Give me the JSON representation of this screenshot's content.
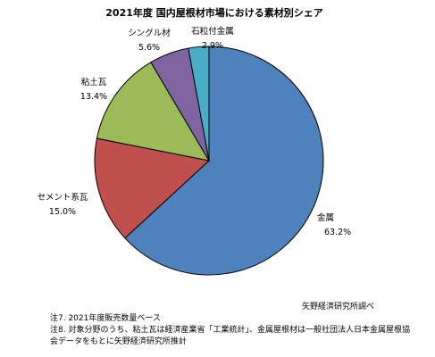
{
  "chart_data": {
    "type": "pie",
    "title": "2021年度 国内屋根材市場における素材別シェア",
    "unit": "%",
    "slices": [
      {
        "label": "金属",
        "value": 63.2,
        "display": "63.2%",
        "color": "#4f81bd"
      },
      {
        "label": "セメント系瓦",
        "value": 15.0,
        "display": "15.0%",
        "color": "#c0504d"
      },
      {
        "label": "粘土瓦",
        "value": 13.4,
        "display": "13.4%",
        "color": "#9bbb59"
      },
      {
        "label": "シングル材",
        "value": 5.6,
        "display": "5.6%",
        "color": "#8064a2"
      },
      {
        "label": "石粒付金属",
        "value": 2.9,
        "display": "2.9%",
        "color": "#4bacc6"
      }
    ],
    "start_angle_deg": 0,
    "direction": "clockwise"
  },
  "source": "矢野経済研究所調べ",
  "notes": [
    "注7. 2021年度販売数量ベース",
    "注8. 対象分野のうち、粘土瓦は経済産業省「工業統計」、金属屋根材は一般社団法人日本金属屋根協",
    "会データをもとに矢野経済研究所推計"
  ]
}
